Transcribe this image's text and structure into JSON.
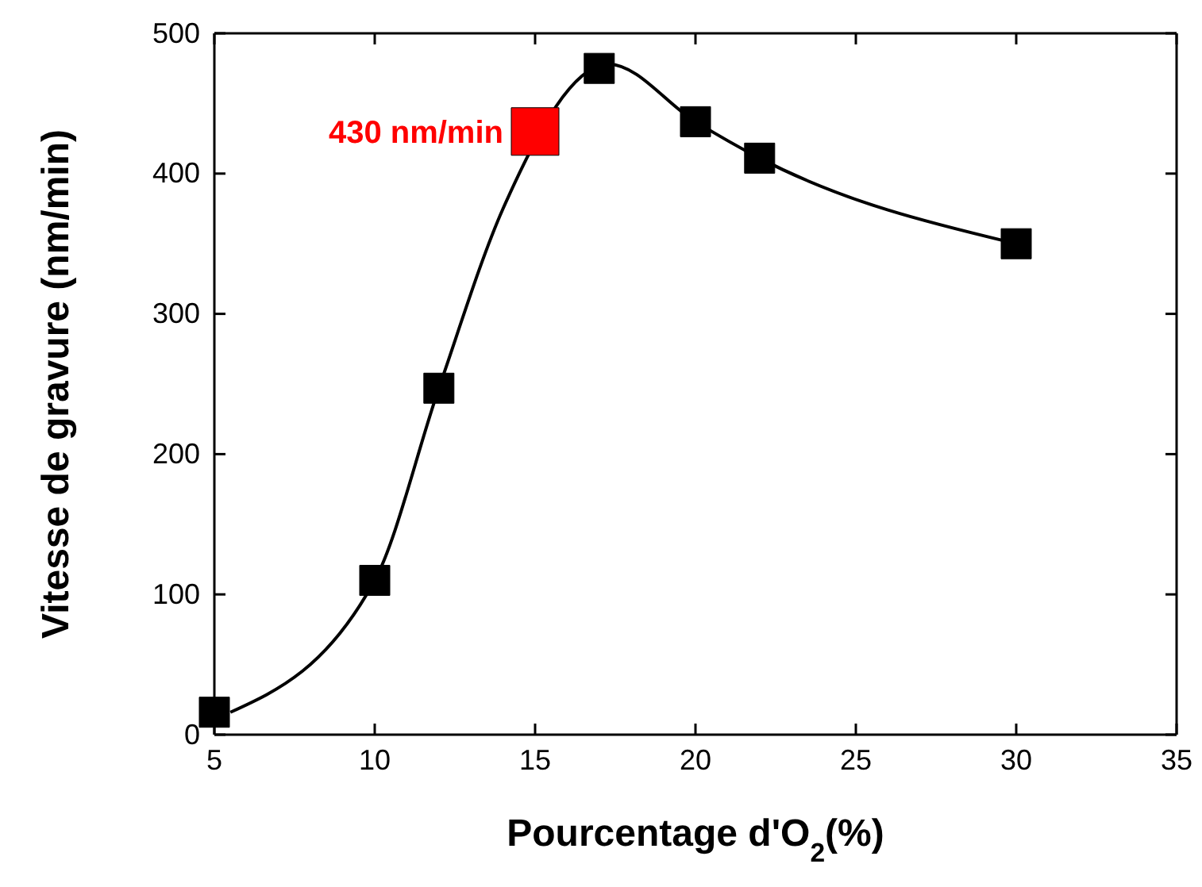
{
  "chart_data": {
    "type": "scatter",
    "xlabel": "Pourcentage d'O$_{2}$(%)",
    "ylabel": "Vitesse de gravure (nm/min)",
    "xlim": [
      5,
      35
    ],
    "xticks": [
      5,
      10,
      15,
      20,
      25,
      30,
      35
    ],
    "ylim": [
      0,
      500
    ],
    "yticks": [
      0,
      100,
      200,
      300,
      400,
      500
    ],
    "grid": false,
    "annotations": [
      {
        "text": "430 nm/min",
        "x": 15,
        "y": 430
      }
    ],
    "series": [
      {
        "type": "line",
        "color": "#000000",
        "marker": "none",
        "line_style": "solid",
        "x": [
          5.5,
          10,
          12,
          14,
          17.3,
          20,
          22,
          30
        ],
        "values": [
          16,
          110,
          247,
          375,
          478,
          437,
          411,
          350
        ]
      },
      {
        "type": "scatter",
        "color": "#000000",
        "marker": "square",
        "x": [
          5,
          10,
          12,
          17,
          20,
          22,
          30
        ],
        "values": [
          16,
          110,
          247,
          475,
          437,
          411,
          350
        ]
      },
      {
        "type": "scatter",
        "color": "#ff0000",
        "marker": "square",
        "x": [
          15
        ],
        "values": [
          430
        ]
      }
    ]
  }
}
